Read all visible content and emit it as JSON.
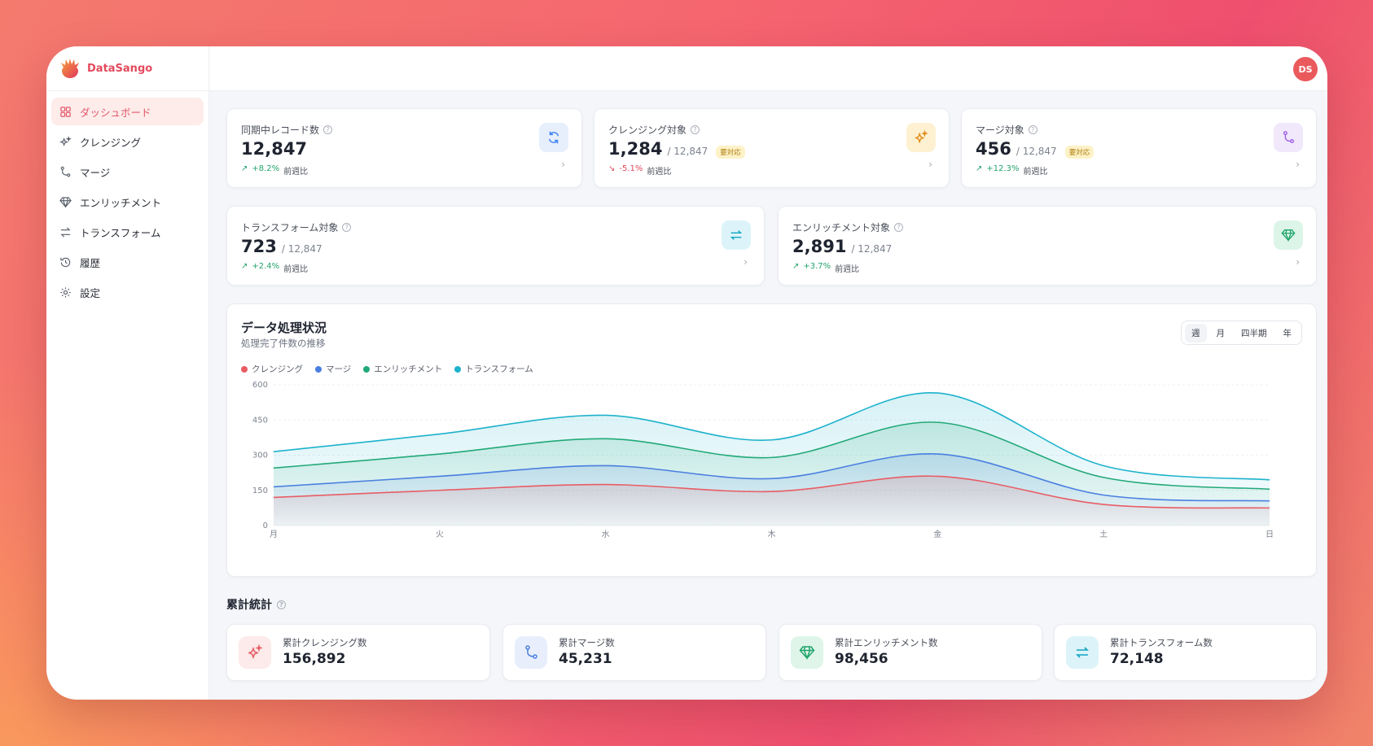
{
  "app": {
    "name": "DataSango",
    "avatar_initials": "DS"
  },
  "sidebar": {
    "items": [
      {
        "label": "ダッシュボード",
        "icon": "dashboard-icon",
        "active": true
      },
      {
        "label": "クレンジング",
        "icon": "sparkles-icon",
        "active": false
      },
      {
        "label": "マージ",
        "icon": "merge-icon",
        "active": false
      },
      {
        "label": "エンリッチメント",
        "icon": "gem-icon",
        "active": false
      },
      {
        "label": "トランスフォーム",
        "icon": "swap-icon",
        "active": false
      },
      {
        "label": "履歴",
        "icon": "history-icon",
        "active": false
      },
      {
        "label": "設定",
        "icon": "gear-icon",
        "active": false
      }
    ]
  },
  "stats": [
    {
      "title": "同期中レコード数",
      "value": "12,847",
      "total": "",
      "badge": "",
      "trend": "+8.2%",
      "trend_dir": "up",
      "trend_label": "前週比",
      "icon": "refresh-icon",
      "color": "#3b82f6",
      "bg": "#e7effd"
    },
    {
      "title": "クレンジング対象",
      "value": "1,284",
      "total": "/ 12,847",
      "badge": "要対応",
      "trend": "-5.1%",
      "trend_dir": "down",
      "trend_label": "前週比",
      "icon": "sparkles-icon",
      "color": "#e08a10",
      "bg": "#fdf1d2"
    },
    {
      "title": "マージ対象",
      "value": "456",
      "total": "/ 12,847",
      "badge": "要対応",
      "trend": "+12.3%",
      "trend_dir": "up",
      "trend_label": "前週比",
      "icon": "merge-icon",
      "color": "#9b5de5",
      "bg": "#f1e8fc"
    },
    {
      "title": "トランスフォーム対象",
      "value": "723",
      "total": "/ 12,847",
      "badge": "",
      "trend": "+2.4%",
      "trend_dir": "up",
      "trend_label": "前週比",
      "icon": "swap-icon",
      "color": "#12a4c4",
      "bg": "#dcf4f9"
    },
    {
      "title": "エンリッチメント対象",
      "value": "2,891",
      "total": "/ 12,847",
      "badge": "",
      "trend": "+3.7%",
      "trend_dir": "up",
      "trend_label": "前週比",
      "icon": "gem-icon",
      "color": "#1fa46a",
      "bg": "#ddf5e9"
    }
  ],
  "chart_panel": {
    "title": "データ処理状況",
    "subtitle": "処理完了件数の推移",
    "periods": [
      "週",
      "月",
      "四半期",
      "年"
    ],
    "active_period": "週"
  },
  "chart_data": {
    "type": "area",
    "categories": [
      "月",
      "火",
      "水",
      "木",
      "金",
      "土",
      "日"
    ],
    "ylim": [
      0,
      600
    ],
    "yticks": [
      0,
      150,
      300,
      450,
      600
    ],
    "series": [
      {
        "name": "クレンジング",
        "color": "#e85d65",
        "values": [
          120,
          150,
          175,
          145,
          210,
          90,
          75
        ]
      },
      {
        "name": "マージ",
        "color": "#4a7fe0",
        "values": [
          165,
          210,
          255,
          200,
          305,
          130,
          105
        ]
      },
      {
        "name": "エンリッチメント",
        "color": "#22a978",
        "values": [
          245,
          305,
          370,
          290,
          440,
          205,
          155
        ]
      },
      {
        "name": "トランスフォーム",
        "color": "#1db2cc",
        "values": [
          315,
          390,
          470,
          365,
          565,
          255,
          195
        ]
      }
    ]
  },
  "cumulative": {
    "title": "累計統計",
    "items": [
      {
        "label": "累計クレンジング数",
        "value": "156,892",
        "icon": "sparkles-icon",
        "color": "#e85d65",
        "bg": "#fdeaea"
      },
      {
        "label": "累計マージ数",
        "value": "45,231",
        "icon": "merge-icon",
        "color": "#4a7fe0",
        "bg": "#e8eefc"
      },
      {
        "label": "累計エンリッチメント数",
        "value": "98,456",
        "icon": "gem-icon",
        "color": "#1fa46a",
        "bg": "#dff5ea"
      },
      {
        "label": "累計トランスフォーム数",
        "value": "72,148",
        "icon": "swap-icon",
        "color": "#12a4c4",
        "bg": "#dcf4f9"
      }
    ]
  }
}
